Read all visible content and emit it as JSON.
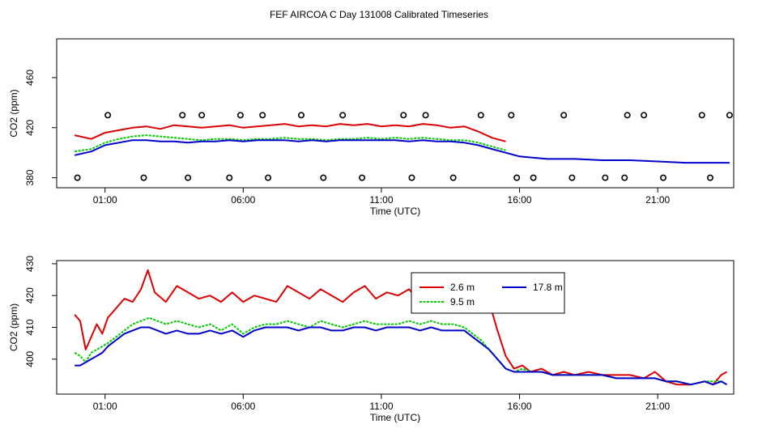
{
  "figure": {
    "title": "FEF AIRCOA C  Day 131008  Calibrated Timeseries"
  },
  "colors": {
    "s1": "#dd0000",
    "s2": "#00cc00",
    "s3": "#0000cc",
    "markers": "#000000"
  },
  "chart_data": [
    {
      "type": "scatter",
      "title": "",
      "xlabel": "Time (UTC)",
      "ylabel": "CO2 (ppm)",
      "xlim": [
        -0.75,
        23.75
      ],
      "ylim": [
        372,
        491
      ],
      "x_ticks": [
        1,
        6,
        11,
        16,
        21
      ],
      "x_tick_labels": [
        "01:00",
        "06:00",
        "11:00",
        "16:00",
        "21:00"
      ],
      "y_ticks": [
        380,
        420,
        460
      ],
      "y_tick_labels": [
        "380",
        "420",
        "460"
      ],
      "grid": false,
      "legend": "none",
      "series": [
        {
          "style": "line",
          "color_key": "s1",
          "x": [
            -0.1,
            0.5,
            1.0,
            1.5,
            2.0,
            2.5,
            3.0,
            3.5,
            4.0,
            4.5,
            5.0,
            5.5,
            6.0,
            6.5,
            7.0,
            7.5,
            8.0,
            8.5,
            9.0,
            9.5,
            10.0,
            10.5,
            11.0,
            11.5,
            12.0,
            12.5,
            13.0,
            13.5,
            14.0,
            14.5,
            15.0,
            15.5
          ],
          "y": [
            414,
            411,
            416,
            418,
            420,
            421,
            419,
            422,
            421,
            420,
            421,
            422,
            420,
            421,
            422,
            423,
            421,
            422,
            421,
            423,
            422,
            423,
            421,
            422,
            421,
            423,
            422,
            420,
            421,
            417,
            412,
            409
          ]
        },
        {
          "style": "line",
          "color_key": "s2",
          "x": [
            -0.1,
            0.5,
            1.0,
            1.5,
            2.0,
            2.5,
            3.0,
            3.5,
            4.0,
            4.5,
            5.0,
            5.5,
            6.0,
            6.5,
            7.0,
            7.5,
            8.0,
            8.5,
            9.0,
            9.5,
            10.0,
            10.5,
            11.0,
            11.5,
            12.0,
            12.5,
            13.0,
            13.5,
            14.0,
            14.5,
            15.0,
            15.5
          ],
          "y": [
            401,
            403,
            408,
            411,
            413,
            414,
            413,
            412,
            411,
            410,
            411,
            411,
            410,
            411,
            411,
            412,
            411,
            411,
            410,
            411,
            411,
            412,
            411,
            412,
            411,
            412,
            411,
            410,
            410,
            408,
            405,
            402
          ]
        },
        {
          "style": "line",
          "color_key": "s3",
          "x": [
            -0.1,
            0.5,
            1.0,
            1.5,
            2.0,
            2.5,
            3.0,
            3.5,
            4.0,
            4.5,
            5.0,
            5.5,
            6.0,
            6.5,
            7.0,
            7.5,
            8.0,
            8.5,
            9.0,
            9.5,
            10.0,
            10.5,
            11.0,
            11.5,
            12.0,
            12.5,
            13.0,
            13.5,
            14.0,
            14.5,
            15.0,
            15.5,
            16.0,
            16.5,
            17.0,
            18.0,
            19.0,
            20.0,
            21.0,
            22.0,
            23.0,
            23.6
          ],
          "y": [
            398,
            401,
            406,
            408,
            410,
            410,
            409,
            409,
            408,
            409,
            409,
            410,
            409,
            410,
            410,
            410,
            409,
            410,
            409,
            410,
            410,
            410,
            410,
            410,
            409,
            410,
            409,
            409,
            408,
            406,
            403,
            400,
            397,
            396,
            395,
            395,
            394,
            394,
            393,
            392,
            392,
            392
          ]
        },
        {
          "style": "markers",
          "color_key": "markers",
          "x": [
            1.1,
            3.8,
            4.5,
            5.9,
            6.7,
            8.1,
            9.6,
            11.8,
            12.6,
            14.6,
            15.7,
            17.6,
            19.9,
            20.5,
            22.6,
            23.6,
            0.0,
            2.4,
            4.0,
            5.5,
            6.9,
            8.9,
            10.3,
            12.1,
            13.6,
            15.9,
            16.5,
            17.9,
            19.1,
            19.8,
            21.2,
            22.9
          ],
          "y": [
            430,
            430,
            430,
            430,
            430,
            430,
            430,
            430,
            430,
            430,
            430,
            430,
            430,
            430,
            430,
            430,
            380,
            380,
            380,
            380,
            380,
            380,
            380,
            380,
            380,
            380,
            380,
            380,
            380,
            380,
            380,
            380
          ]
        }
      ]
    },
    {
      "type": "line",
      "title": "",
      "xlabel": "Time (UTC)",
      "ylabel": "CO2 (ppm)",
      "xlim": [
        -0.75,
        23.75
      ],
      "ylim": [
        389,
        431
      ],
      "x_ticks": [
        1,
        6,
        11,
        16,
        21
      ],
      "x_tick_labels": [
        "01:00",
        "06:00",
        "11:00",
        "16:00",
        "21:00"
      ],
      "y_ticks": [
        400,
        410,
        420,
        430
      ],
      "y_tick_labels": [
        "400",
        "410",
        "420",
        "430"
      ],
      "grid": false,
      "legend": "top-right",
      "series": [
        {
          "name": "2.6 m",
          "color_key": "s1",
          "x": [
            -0.1,
            0.1,
            0.3,
            0.5,
            0.7,
            0.9,
            1.1,
            1.4,
            1.7,
            2.0,
            2.3,
            2.55,
            2.8,
            3.2,
            3.6,
            4.0,
            4.4,
            4.8,
            5.2,
            5.6,
            6.0,
            6.4,
            6.8,
            7.2,
            7.6,
            8.0,
            8.4,
            8.8,
            9.2,
            9.6,
            10.0,
            10.4,
            10.8,
            11.2,
            11.6,
            12.0,
            12.4,
            12.8,
            13.2,
            13.6,
            14.0,
            14.3,
            14.6,
            14.9,
            15.2,
            15.5,
            15.8,
            16.1,
            16.4,
            16.8,
            17.2,
            17.6,
            18.0,
            18.5,
            19.0,
            19.5,
            20.0,
            20.5,
            20.9,
            21.3,
            21.7,
            22.2,
            22.7,
            23.0,
            23.3,
            23.5
          ],
          "y": [
            414,
            412,
            403,
            407,
            411,
            408,
            413,
            416,
            419,
            418,
            422,
            428,
            421,
            418,
            423,
            421,
            419,
            420,
            418,
            421,
            418,
            420,
            419,
            418,
            423,
            421,
            419,
            422,
            420,
            418,
            421,
            423,
            419,
            421,
            420,
            422,
            418,
            420,
            423,
            421,
            419,
            424,
            420,
            418,
            409,
            401,
            397,
            398,
            396,
            397,
            395,
            396,
            395,
            396,
            395,
            395,
            395,
            394,
            396,
            393,
            392,
            392,
            393,
            392,
            395,
            396
          ]
        },
        {
          "name": "9.5 m",
          "color_key": "s2",
          "x": [
            -0.1,
            0.1,
            0.3,
            0.5,
            0.7,
            0.9,
            1.1,
            1.4,
            1.7,
            2.0,
            2.3,
            2.6,
            2.9,
            3.2,
            3.6,
            4.0,
            4.4,
            4.8,
            5.2,
            5.6,
            6.0,
            6.4,
            6.8,
            7.2,
            7.6,
            8.0,
            8.4,
            8.8,
            9.2,
            9.6,
            10.0,
            10.4,
            10.8,
            11.2,
            11.6,
            12.0,
            12.4,
            12.8,
            13.2,
            13.6,
            14.0,
            14.3,
            14.6,
            14.9,
            15.2,
            15.5,
            15.8,
            16.1,
            16.4,
            16.8,
            17.2,
            17.6,
            18.0,
            18.5,
            19.0,
            19.5,
            20.0,
            20.5,
            20.9,
            21.3,
            21.7,
            22.2,
            22.7,
            23.0,
            23.3,
            23.5
          ],
          "y": [
            402,
            401,
            399,
            402,
            403,
            404,
            405,
            407,
            409,
            411,
            412,
            413,
            412,
            411,
            412,
            411,
            410,
            411,
            409,
            411,
            408,
            410,
            411,
            411,
            412,
            411,
            410,
            412,
            411,
            410,
            411,
            412,
            411,
            411,
            411,
            412,
            411,
            412,
            411,
            411,
            410,
            408,
            406,
            403,
            400,
            397,
            396,
            397,
            396,
            396,
            395,
            395,
            395,
            395,
            395,
            394,
            394,
            394,
            394,
            393,
            393,
            392,
            393,
            393,
            393,
            392
          ]
        },
        {
          "name": "17.8 m",
          "color_key": "s3",
          "x": [
            -0.1,
            0.1,
            0.3,
            0.5,
            0.7,
            0.9,
            1.1,
            1.4,
            1.7,
            2.0,
            2.3,
            2.6,
            2.9,
            3.2,
            3.6,
            4.0,
            4.4,
            4.8,
            5.2,
            5.6,
            6.0,
            6.4,
            6.8,
            7.2,
            7.6,
            8.0,
            8.4,
            8.8,
            9.2,
            9.6,
            10.0,
            10.4,
            10.8,
            11.2,
            11.6,
            12.0,
            12.4,
            12.8,
            13.2,
            13.6,
            14.0,
            14.3,
            14.6,
            14.9,
            15.2,
            15.5,
            15.8,
            16.1,
            16.4,
            16.8,
            17.2,
            17.6,
            18.0,
            18.5,
            19.0,
            19.5,
            20.0,
            20.5,
            20.9,
            21.3,
            21.7,
            22.2,
            22.7,
            23.0,
            23.3,
            23.5
          ],
          "y": [
            398,
            398,
            399,
            400,
            401,
            402,
            404,
            406,
            408,
            409,
            410,
            410,
            409,
            408,
            409,
            408,
            408,
            409,
            408,
            409,
            407,
            409,
            410,
            410,
            410,
            409,
            410,
            410,
            409,
            409,
            410,
            410,
            409,
            410,
            410,
            410,
            409,
            410,
            409,
            409,
            409,
            407,
            405,
            403,
            400,
            397,
            396,
            396,
            396,
            396,
            395,
            395,
            395,
            395,
            395,
            394,
            394,
            394,
            394,
            393,
            393,
            392,
            393,
            392,
            393,
            392
          ]
        }
      ]
    }
  ]
}
